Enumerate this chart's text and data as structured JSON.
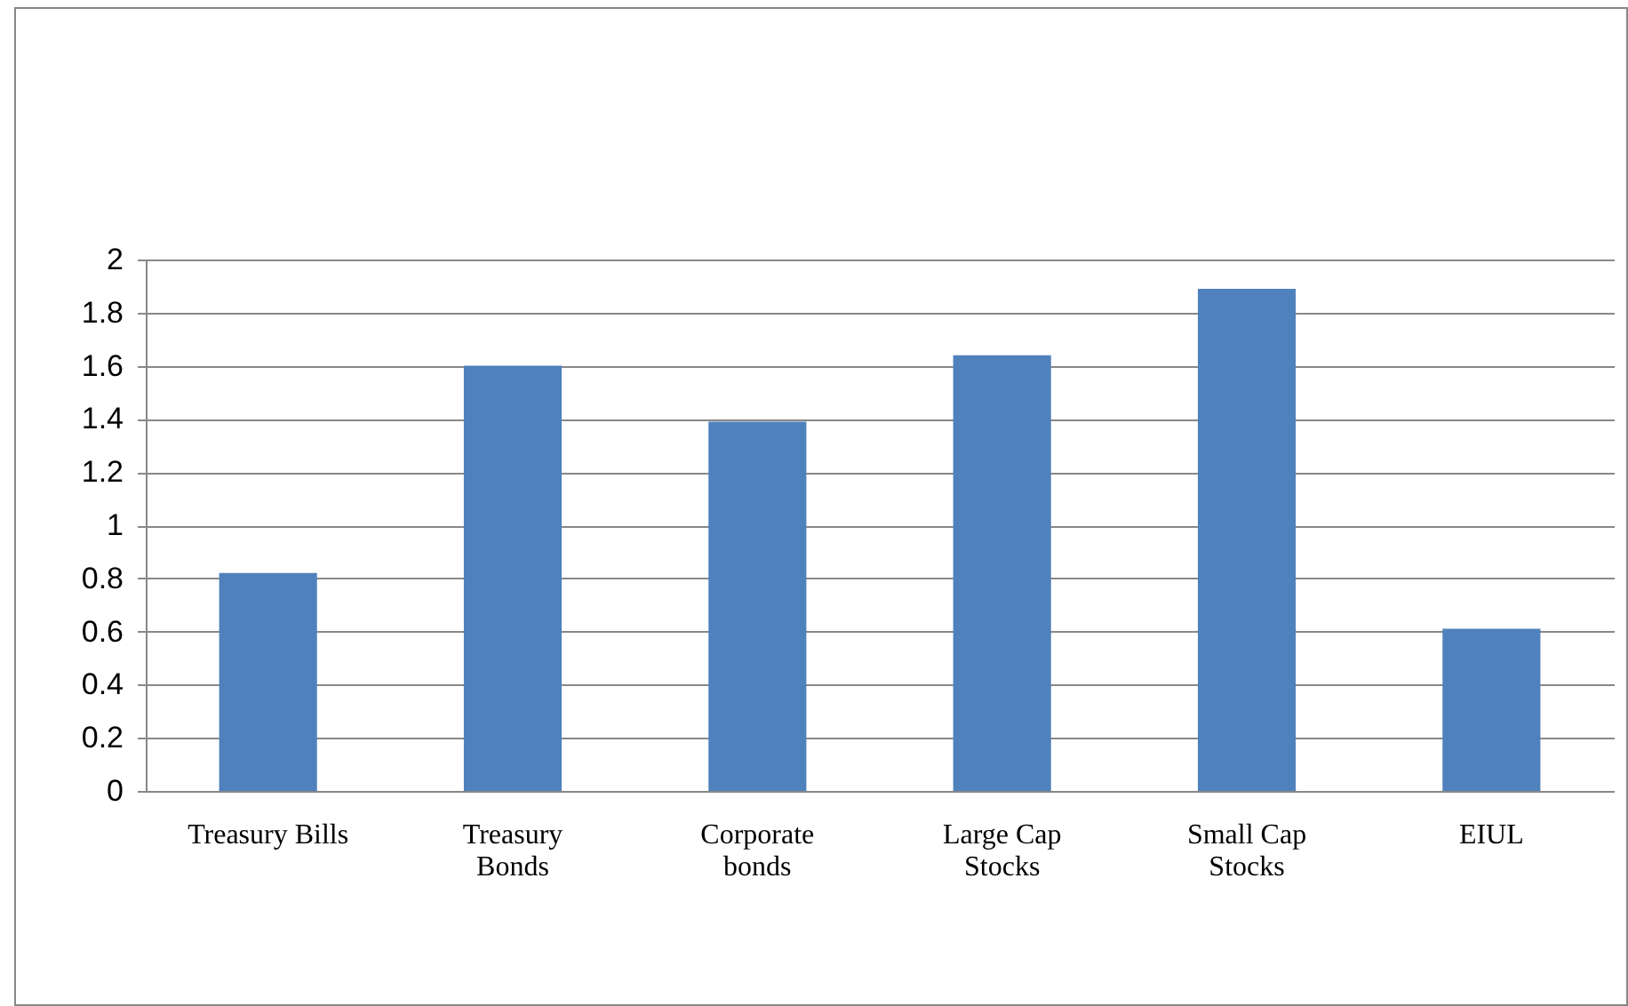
{
  "chart_data": {
    "type": "bar",
    "categories": [
      "Treasury Bills",
      "Treasury Bonds",
      "Corporate bonds",
      "Large Cap Stocks",
      "Small Cap Stocks",
      "EIUL"
    ],
    "values": [
      0.82,
      1.6,
      1.39,
      1.64,
      1.89,
      0.61
    ],
    "color": "#4f81bd",
    "ylim": [
      0,
      2
    ],
    "yticks": [
      0,
      0.2,
      0.4,
      0.6,
      0.8,
      1,
      1.2,
      1.4,
      1.6,
      1.8,
      2
    ],
    "grid": "y",
    "legend": false
  }
}
